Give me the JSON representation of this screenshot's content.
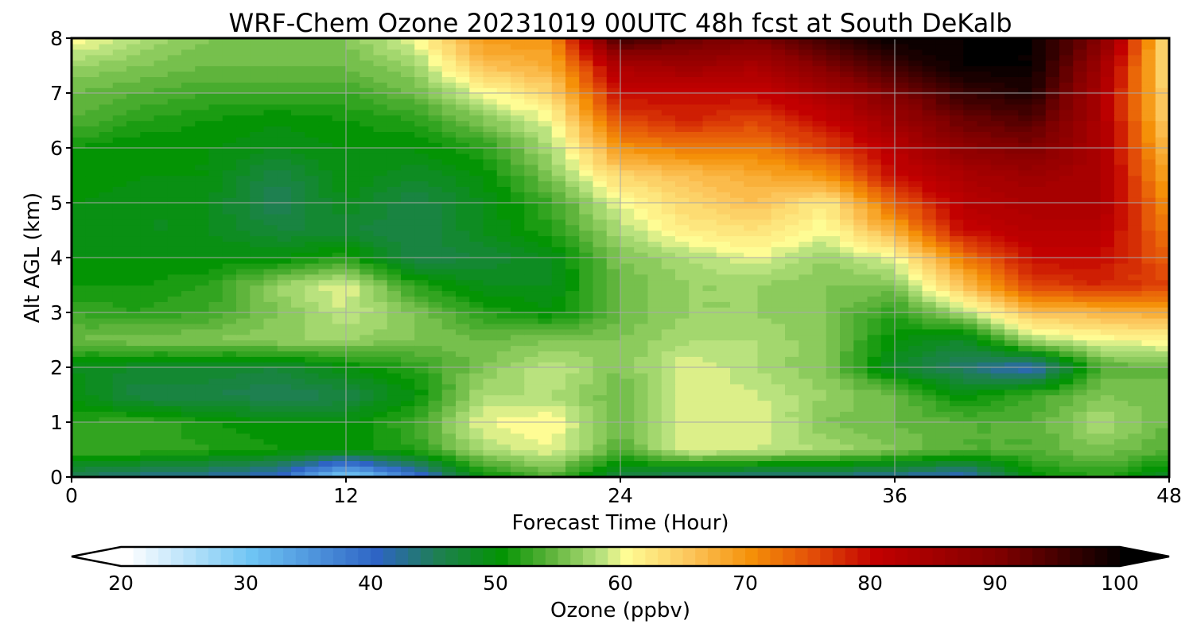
{
  "chart_data": {
    "type": "heatmap",
    "title": "WRF-Chem Ozone  20231019 00UTC 48h fcst at South DeKalb",
    "xlabel": "Forecast Time (Hour)",
    "ylabel": "Alt AGL (km)",
    "xlim": [
      0,
      48
    ],
    "ylim": [
      0,
      8
    ],
    "x_ticks": [
      "0",
      "12",
      "24",
      "36",
      "48"
    ],
    "y_ticks": [
      "0",
      "1",
      "2",
      "3",
      "4",
      "5",
      "6",
      "7",
      "8"
    ],
    "grid": true,
    "x_hours": [
      0,
      3,
      6,
      9,
      12,
      15,
      18,
      21,
      24,
      27,
      30,
      33,
      36,
      39,
      42,
      45,
      48
    ],
    "alt_km": [
      0,
      0.5,
      1,
      1.5,
      2,
      2.5,
      3,
      3.5,
      4,
      4.5,
      5,
      5.5,
      6,
      6.5,
      7,
      7.5,
      8
    ],
    "ozone_ppbv": [
      [
        45,
        43,
        42,
        40,
        28,
        38,
        50,
        54,
        46,
        44,
        43,
        43,
        42,
        40,
        50,
        52,
        48
      ],
      [
        53,
        53,
        52,
        51,
        50,
        52,
        58,
        60,
        54,
        60,
        59,
        58,
        56,
        54,
        54,
        56,
        54
      ],
      [
        52,
        53,
        51,
        50,
        50,
        53,
        60,
        61,
        55,
        60,
        60,
        56,
        55,
        54,
        54,
        58,
        55
      ],
      [
        50,
        46,
        46,
        45,
        46,
        50,
        58,
        58,
        55,
        60,
        59,
        57,
        55,
        50,
        53,
        56,
        55
      ],
      [
        49,
        48,
        48,
        47,
        50,
        52,
        56,
        59,
        56,
        60,
        58,
        56,
        48,
        44,
        40,
        54,
        55
      ],
      [
        55,
        56,
        56,
        57,
        57,
        56,
        55,
        56,
        56,
        58,
        58,
        56,
        50,
        48,
        58,
        60,
        61
      ],
      [
        53,
        52,
        53,
        56,
        59,
        56,
        52,
        50,
        55,
        57,
        57,
        56,
        52,
        58,
        66,
        67,
        68
      ],
      [
        51,
        51,
        52,
        57,
        60,
        52,
        49,
        49,
        55,
        57,
        57,
        56,
        56,
        66,
        76,
        78,
        76
      ],
      [
        50,
        50,
        50,
        50,
        52,
        46,
        47,
        49,
        56,
        58,
        60,
        57,
        60,
        72,
        80,
        80,
        74
      ],
      [
        50,
        49,
        49,
        47,
        47,
        46,
        49,
        52,
        58,
        62,
        63,
        60,
        68,
        80,
        82,
        82,
        72
      ],
      [
        50,
        49,
        49,
        45,
        49,
        46,
        49,
        53,
        60,
        64,
        66,
        62,
        74,
        82,
        84,
        84,
        70
      ],
      [
        51,
        50,
        50,
        46,
        50,
        48,
        50,
        56,
        64,
        66,
        68,
        70,
        80,
        84,
        86,
        84,
        68
      ],
      [
        51,
        50,
        50,
        49,
        50,
        50,
        52,
        58,
        70,
        72,
        72,
        76,
        82,
        88,
        90,
        84,
        66
      ],
      [
        54,
        52,
        51,
        50,
        51,
        52,
        56,
        60,
        76,
        78,
        76,
        80,
        86,
        92,
        94,
        84,
        64
      ],
      [
        55,
        54,
        53,
        53,
        53,
        55,
        60,
        64,
        80,
        80,
        80,
        84,
        90,
        96,
        98,
        84,
        63
      ],
      [
        57,
        56,
        55,
        55,
        55,
        57,
        66,
        68,
        84,
        86,
        84,
        90,
        96,
        100,
        100,
        86,
        62
      ],
      [
        61,
        58,
        56,
        56,
        56,
        60,
        70,
        70,
        96,
        92,
        90,
        96,
        100,
        100,
        100,
        90,
        62
      ]
    ],
    "colorbar": {
      "label": "Ozone  (ppbv)",
      "min": 20,
      "max": 100,
      "step": 1,
      "extend": "both",
      "tick_values": [
        20,
        30,
        40,
        50,
        60,
        70,
        80,
        90,
        100
      ],
      "tick_labels": [
        "20",
        "30",
        "40",
        "50",
        "60",
        "70",
        "80",
        "90",
        "100"
      ],
      "color_stops": [
        [
          20,
          "#ffffff"
        ],
        [
          30,
          "#6ec4f4"
        ],
        [
          40,
          "#2e64c4"
        ],
        [
          45,
          "#1e8050"
        ],
        [
          50,
          "#049404"
        ],
        [
          54,
          "#5fb43c"
        ],
        [
          58,
          "#b9e27e"
        ],
        [
          60,
          "#fefc94"
        ],
        [
          65,
          "#fcc65c"
        ],
        [
          70,
          "#f59008"
        ],
        [
          75,
          "#e24c08"
        ],
        [
          80,
          "#c20000"
        ],
        [
          90,
          "#7e0000"
        ],
        [
          100,
          "#000000"
        ]
      ]
    }
  }
}
